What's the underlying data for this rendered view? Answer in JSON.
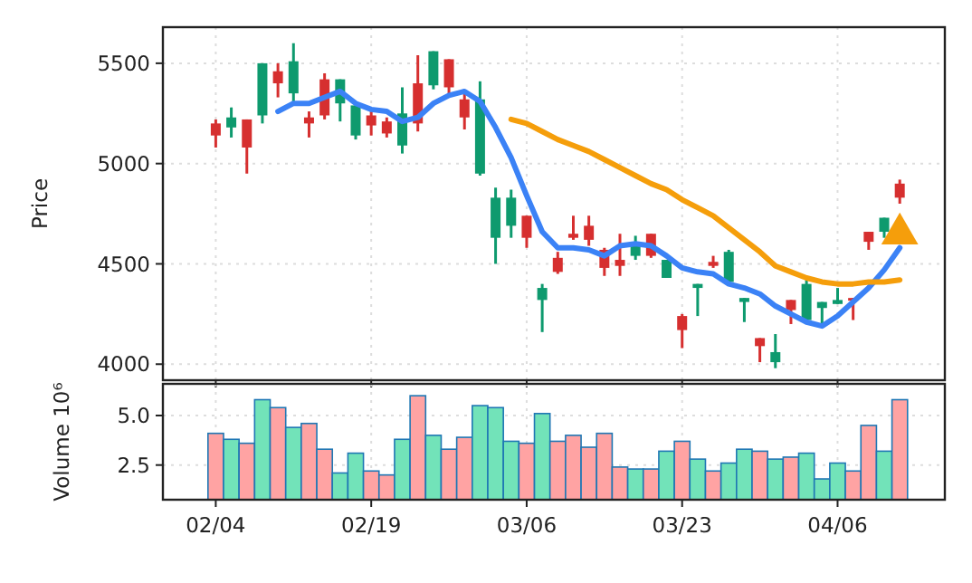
{
  "chart_data": [
    {
      "type": "candlestick",
      "ylabel": "Price",
      "categories": [
        null,
        null,
        null,
        null,
        null,
        null,
        null,
        null,
        null,
        null,
        null,
        null,
        null,
        null,
        null,
        null,
        null,
        null,
        null,
        null,
        null,
        null,
        null,
        null,
        null,
        null,
        null,
        null,
        null,
        null,
        null,
        null,
        null,
        null,
        null,
        null,
        null,
        null,
        null,
        null,
        null,
        null,
        null,
        null,
        null
      ],
      "ylim": [
        3920,
        5680
      ],
      "yticks": [
        4000,
        4500,
        5000,
        5500
      ],
      "grid": true,
      "tick_labels": "y",
      "series": [
        {
          "type": "candlestick",
          "colors": [
            "#d62f2f",
            "#0e9a6e",
            "#d62f2f",
            "#0e9a6e",
            "#d62f2f",
            "#0e9a6e",
            "#d62f2f",
            "#d62f2f",
            "#0e9a6e",
            "#0e9a6e",
            "#d62f2f",
            "#d62f2f",
            "#0e9a6e",
            "#d62f2f",
            "#0e9a6e",
            "#d62f2f",
            "#d62f2f",
            "#0e9a6e",
            "#0e9a6e",
            "#0e9a6e",
            "#d62f2f",
            "#0e9a6e",
            "#d62f2f",
            "#d62f2f",
            "#d62f2f",
            "#d62f2f",
            "#d62f2f",
            "#0e9a6e",
            "#d62f2f",
            "#0e9a6e",
            "#d62f2f",
            "#0e9a6e",
            "#d62f2f",
            "#0e9a6e",
            "#0e9a6e",
            "#d62f2f",
            "#0e9a6e",
            "#d62f2f",
            "#0e9a6e",
            "#0e9a6e",
            "#0e9a6e",
            "#d62f2f",
            "#d62f2f",
            "#0e9a6e",
            "#d62f2f"
          ],
          "ohlc": [
            [
              5140,
              5220,
              5080,
              5200
            ],
            [
              5230,
              5280,
              5130,
              5180
            ],
            [
              5080,
              5220,
              4950,
              5220
            ],
            [
              5500,
              5500,
              5200,
              5240
            ],
            [
              5400,
              5500,
              5330,
              5460
            ],
            [
              5510,
              5600,
              5300,
              5350
            ],
            [
              5200,
              5260,
              5130,
              5230
            ],
            [
              5240,
              5450,
              5220,
              5420
            ],
            [
              5420,
              5420,
              5210,
              5300
            ],
            [
              5290,
              5290,
              5120,
              5140
            ],
            [
              5190,
              5260,
              5140,
              5240
            ],
            [
              5150,
              5230,
              5130,
              5210
            ],
            [
              5250,
              5380,
              5050,
              5090
            ],
            [
              5200,
              5540,
              5160,
              5400
            ],
            [
              5560,
              5560,
              5370,
              5390
            ],
            [
              5380,
              5520,
              5340,
              5520
            ],
            [
              5230,
              5350,
              5170,
              5320
            ],
            [
              5320,
              5410,
              4940,
              4950
            ],
            [
              4830,
              4880,
              4500,
              4630
            ],
            [
              4830,
              4870,
              4630,
              4690
            ],
            [
              4630,
              4740,
              4580,
              4740
            ],
            [
              4380,
              4400,
              4160,
              4320
            ],
            [
              4460,
              4560,
              4450,
              4530
            ],
            [
              4630,
              4740,
              4620,
              4650
            ],
            [
              4620,
              4740,
              4590,
              4690
            ],
            [
              4480,
              4580,
              4440,
              4570
            ],
            [
              4490,
              4650,
              4440,
              4520
            ],
            [
              4590,
              4640,
              4520,
              4540
            ],
            [
              4540,
              4650,
              4530,
              4650
            ],
            [
              4520,
              4520,
              4430,
              4430
            ],
            [
              4170,
              4250,
              4080,
              4240
            ],
            [
              4400,
              4400,
              4240,
              4380
            ],
            [
              4490,
              4540,
              4480,
              4510
            ],
            [
              4560,
              4570,
              4410,
              4410
            ],
            [
              4330,
              4330,
              4210,
              4310
            ],
            [
              4090,
              4130,
              4010,
              4130
            ],
            [
              4060,
              4150,
              3980,
              4010
            ],
            [
              4270,
              4320,
              4200,
              4320
            ],
            [
              4400,
              4420,
              4220,
              4220
            ],
            [
              4310,
              4310,
              4200,
              4280
            ],
            [
              4320,
              4380,
              4300,
              4300
            ],
            [
              4320,
              4330,
              4220,
              4330
            ],
            [
              4610,
              4660,
              4570,
              4660
            ],
            [
              4730,
              4730,
              4630,
              4660
            ],
            [
              4830,
              4920,
              4800,
              4900
            ]
          ]
        },
        {
          "type": "line",
          "color": "#3b82f6",
          "values": [
            null,
            null,
            null,
            null,
            5260,
            5300,
            5300,
            5330,
            5360,
            5300,
            5270,
            5260,
            5210,
            5230,
            5300,
            5340,
            5360,
            5310,
            5180,
            5030,
            4840,
            4660,
            4580,
            4580,
            4570,
            4540,
            4590,
            4600,
            4590,
            4540,
            4480,
            4460,
            4450,
            4400,
            4380,
            4350,
            4290,
            4250,
            4210,
            4190,
            4240,
            4310,
            4380,
            4470,
            4580
          ]
        },
        {
          "type": "line",
          "color": "#f59e0b",
          "values": [
            null,
            null,
            null,
            null,
            null,
            null,
            null,
            null,
            null,
            null,
            null,
            null,
            null,
            null,
            null,
            null,
            null,
            null,
            null,
            5220,
            5200,
            5160,
            5120,
            5090,
            5060,
            5020,
            4980,
            4940,
            4900,
            4870,
            4820,
            4780,
            4740,
            4680,
            4620,
            4560,
            4490,
            4460,
            4430,
            4410,
            4400,
            4400,
            4410,
            4410,
            4420
          ]
        },
        {
          "type": "scatter",
          "color": "#f59e0b",
          "marker": "triangle",
          "values": [
            null,
            null,
            null,
            null,
            null,
            null,
            null,
            null,
            null,
            null,
            null,
            null,
            null,
            null,
            null,
            null,
            null,
            null,
            null,
            null,
            null,
            null,
            null,
            null,
            null,
            null,
            null,
            null,
            null,
            null,
            null,
            null,
            null,
            null,
            null,
            null,
            null,
            null,
            null,
            null,
            null,
            null,
            null,
            null,
            4650
          ]
        }
      ]
    },
    {
      "type": "bar",
      "ylabel": "Volume  10⁶",
      "categories": [
        "02/04",
        null,
        null,
        null,
        null,
        null,
        null,
        null,
        null,
        null,
        "02/19",
        null,
        null,
        null,
        null,
        null,
        null,
        null,
        null,
        null,
        "03/06",
        null,
        null,
        null,
        null,
        null,
        null,
        null,
        null,
        null,
        "03/23",
        null,
        null,
        null,
        null,
        null,
        null,
        null,
        null,
        null,
        "04/06",
        null,
        null,
        null,
        null
      ],
      "ylim": [
        0.75,
        6.6
      ],
      "yticks": [
        {
          "value": 2.5,
          "label": "2.5"
        },
        {
          "value": 5,
          "label": "5.0"
        }
      ],
      "grid": true,
      "values": [
        4.1,
        3.8,
        3.6,
        5.8,
        5.4,
        4.4,
        4.6,
        3.3,
        2.1,
        3.1,
        2.2,
        2.0,
        3.8,
        6.0,
        4.0,
        3.3,
        3.9,
        5.5,
        5.4,
        3.7,
        3.6,
        5.1,
        3.7,
        4.0,
        3.4,
        4.1,
        2.4,
        2.3,
        2.3,
        3.2,
        3.7,
        2.8,
        2.2,
        2.6,
        3.3,
        3.2,
        2.8,
        2.9,
        3.1,
        1.8,
        2.6,
        2.2,
        4.5,
        3.2,
        5.8
      ],
      "colors": [
        "#ffa3a3",
        "#72e3b9",
        "#ffa3a3",
        "#72e3b9",
        "#ffa3a3",
        "#72e3b9",
        "#ffa3a3",
        "#ffa3a3",
        "#72e3b9",
        "#72e3b9",
        "#ffa3a3",
        "#ffa3a3",
        "#72e3b9",
        "#ffa3a3",
        "#72e3b9",
        "#ffa3a3",
        "#ffa3a3",
        "#72e3b9",
        "#72e3b9",
        "#72e3b9",
        "#ffa3a3",
        "#72e3b9",
        "#ffa3a3",
        "#ffa3a3",
        "#ffa3a3",
        "#ffa3a3",
        "#ffa3a3",
        "#72e3b9",
        "#ffa3a3",
        "#72e3b9",
        "#ffa3a3",
        "#72e3b9",
        "#ffa3a3",
        "#72e3b9",
        "#72e3b9",
        "#ffa3a3",
        "#72e3b9",
        "#ffa3a3",
        "#72e3b9",
        "#72e3b9",
        "#72e3b9",
        "#ffa3a3",
        "#ffa3a3",
        "#72e3b9",
        "#ffa3a3"
      ]
    }
  ]
}
